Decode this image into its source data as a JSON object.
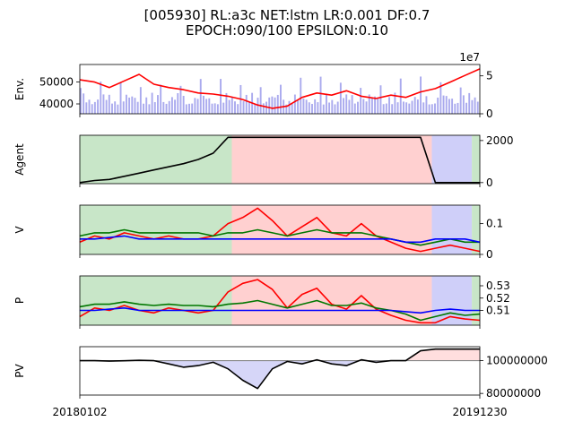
{
  "title_line1": "[005930] RL:a3c NET:lstm LR:0.001 DF:0.7",
  "title_line2": "EPOCH:090/100 EPSILON:0.10",
  "chart_data": [
    {
      "type": "line",
      "ylabel": "Env.",
      "series": [
        {
          "color": "#ff0000",
          "values": [
            51000,
            50000,
            47500,
            50500,
            53500,
            49000,
            47500,
            46500,
            45000,
            44500,
            43500,
            42000,
            39500,
            38000,
            39000,
            43000,
            45000,
            44000,
            46000,
            43500,
            42500,
            44000,
            43000,
            45500,
            47000,
            50000,
            53000,
            56000
          ]
        }
      ],
      "yticks": [
        40000,
        50000
      ],
      "ylim": [
        35500,
        58000
      ],
      "secondary_axis": {
        "label": "1e7",
        "ticks": [
          0,
          5
        ],
        "ylim": [
          0,
          6.5
        ],
        "bar_color": "#aaaaee"
      }
    },
    {
      "type": "line",
      "ylabel": "Agent",
      "series": [
        {
          "color": "#000000",
          "values": [
            0,
            100,
            150,
            300,
            450,
            600,
            750,
            900,
            1100,
            1400,
            2150,
            2150,
            2150,
            2150,
            2150,
            2150,
            2150,
            2150,
            2150,
            2150,
            2150,
            2150,
            2150,
            2150,
            0,
            0,
            0,
            0
          ]
        }
      ],
      "yticks": [
        0,
        2000
      ],
      "ylim": [
        -50,
        2250
      ],
      "background_segments": [
        {
          "from": 0.0,
          "to": 0.38,
          "color": "#c8e6c8"
        },
        {
          "from": 0.38,
          "to": 0.88,
          "color": "#ffd0d0"
        },
        {
          "from": 0.88,
          "to": 0.98,
          "color": "#cfcff9"
        },
        {
          "from": 0.98,
          "to": 1.0,
          "color": "#c8e6c8"
        }
      ]
    },
    {
      "type": "line",
      "ylabel": "V",
      "series": [
        {
          "color": "#ff0000",
          "values": [
            0.04,
            0.06,
            0.05,
            0.07,
            0.06,
            0.05,
            0.06,
            0.05,
            0.05,
            0.06,
            0.1,
            0.12,
            0.15,
            0.11,
            0.06,
            0.09,
            0.12,
            0.07,
            0.06,
            0.1,
            0.06,
            0.04,
            0.02,
            0.01,
            0.02,
            0.03,
            0.02,
            0.01
          ]
        },
        {
          "color": "#007700",
          "values": [
            0.06,
            0.07,
            0.07,
            0.08,
            0.07,
            0.07,
            0.07,
            0.07,
            0.07,
            0.06,
            0.07,
            0.07,
            0.08,
            0.07,
            0.06,
            0.07,
            0.08,
            0.07,
            0.07,
            0.07,
            0.06,
            0.05,
            0.04,
            0.03,
            0.04,
            0.05,
            0.04,
            0.04
          ]
        },
        {
          "color": "#0000ff",
          "values": [
            0.05,
            0.05,
            0.055,
            0.06,
            0.05,
            0.05,
            0.05,
            0.05,
            0.05,
            0.05,
            0.05,
            0.05,
            0.05,
            0.05,
            0.05,
            0.05,
            0.05,
            0.05,
            0.05,
            0.05,
            0.05,
            0.05,
            0.04,
            0.04,
            0.05,
            0.05,
            0.05,
            0.04
          ]
        }
      ],
      "yticks": [
        0.0,
        0.1
      ],
      "ylim": [
        0.0,
        0.16
      ],
      "background_segments": [
        {
          "from": 0.0,
          "to": 0.38,
          "color": "#c8e6c8"
        },
        {
          "from": 0.38,
          "to": 0.88,
          "color": "#ffd0d0"
        },
        {
          "from": 0.88,
          "to": 0.98,
          "color": "#cfcff9"
        },
        {
          "from": 0.98,
          "to": 1.0,
          "color": "#c8e6c8"
        }
      ]
    },
    {
      "type": "line",
      "ylabel": "P",
      "series": [
        {
          "color": "#ff0000",
          "values": [
            0.505,
            0.512,
            0.51,
            0.514,
            0.51,
            0.508,
            0.512,
            0.51,
            0.508,
            0.51,
            0.525,
            0.532,
            0.535,
            0.527,
            0.512,
            0.523,
            0.528,
            0.515,
            0.511,
            0.522,
            0.511,
            0.506,
            0.502,
            0.5,
            0.5,
            0.505,
            0.503,
            0.502
          ]
        },
        {
          "color": "#007700",
          "values": [
            0.513,
            0.515,
            0.515,
            0.517,
            0.515,
            0.514,
            0.515,
            0.514,
            0.514,
            0.513,
            0.515,
            0.516,
            0.518,
            0.515,
            0.512,
            0.515,
            0.518,
            0.514,
            0.514,
            0.516,
            0.512,
            0.51,
            0.507,
            0.502,
            0.505,
            0.508,
            0.506,
            0.507
          ]
        },
        {
          "color": "#0000ff",
          "values": [
            0.51,
            0.51,
            0.511,
            0.512,
            0.51,
            0.51,
            0.51,
            0.51,
            0.51,
            0.51,
            0.51,
            0.51,
            0.51,
            0.51,
            0.51,
            0.51,
            0.51,
            0.51,
            0.51,
            0.51,
            0.51,
            0.51,
            0.509,
            0.508,
            0.51,
            0.511,
            0.51,
            0.51
          ]
        }
      ],
      "yticks": [
        0.51,
        0.52,
        0.53
      ],
      "ylim": [
        0.498,
        0.538
      ],
      "background_segments": [
        {
          "from": 0.0,
          "to": 0.38,
          "color": "#c8e6c8"
        },
        {
          "from": 0.38,
          "to": 0.88,
          "color": "#ffd0d0"
        },
        {
          "from": 0.88,
          "to": 0.98,
          "color": "#cfcff9"
        },
        {
          "from": 0.98,
          "to": 1.0,
          "color": "#c8e6c8"
        }
      ]
    },
    {
      "type": "area",
      "ylabel": "PV",
      "series": [
        {
          "color": "#000000",
          "values": [
            100000000,
            100000000,
            99700000,
            99900000,
            100200000,
            100000000,
            98000000,
            96000000,
            97000000,
            99000000,
            95000000,
            88000000,
            83000000,
            95000000,
            99500000,
            98000000,
            100500000,
            98000000,
            97000000,
            100500000,
            99000000,
            100000000,
            100000000,
            106000000,
            107000000,
            107000000,
            107000000,
            107000000
          ]
        }
      ],
      "baseline": 100000000,
      "yticks": [
        80000000,
        100000000
      ],
      "ylim": [
        79000000,
        108500000
      ],
      "xtick_labels": [
        "20180102",
        "20191230"
      ]
    }
  ]
}
